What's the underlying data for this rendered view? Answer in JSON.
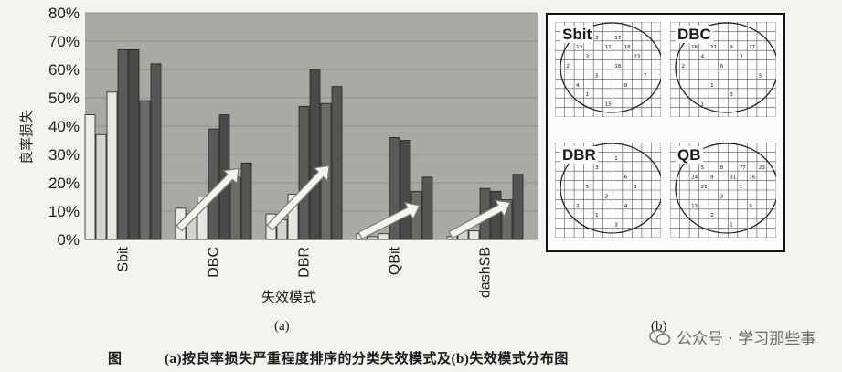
{
  "chart_data": {
    "type": "bar",
    "ylabel": "良率损失",
    "xlabel": "失效模式",
    "sublabel": "(a)",
    "ylim": [
      0,
      80
    ],
    "yticks": [
      "0%",
      "10%",
      "20%",
      "30%",
      "40%",
      "50%",
      "60%",
      "70%",
      "80%"
    ],
    "categories": [
      "Sbit",
      "DBC",
      "DBR",
      "QBit",
      "dashSB"
    ],
    "values": [
      [
        44,
        37,
        52,
        67,
        67,
        49,
        62
      ],
      [
        11,
        9,
        15,
        39,
        44,
        22,
        27
      ],
      [
        9,
        7,
        16,
        47,
        60,
        48,
        54
      ],
      [
        2,
        1,
        2,
        36,
        35,
        17,
        22
      ],
      [
        1,
        4,
        3,
        18,
        17,
        14,
        23
      ]
    ],
    "bar_colors": [
      "#eaeae6",
      "#d4d4cf",
      "#e6e6e2",
      "#5a5a58",
      "#4a4a48",
      "#6a6a67",
      "#555553"
    ],
    "trend_arrows": [
      "DBC",
      "DBR",
      "QBit",
      "dashSB"
    ],
    "grid": true,
    "colors": {
      "plot_bg": "#a9a9a6",
      "grid": "#8f8f8c",
      "arrow_fill": "#f4f4f1",
      "arrow_stroke": "#7a7a77"
    }
  },
  "panel_b": {
    "sublabel": "(b)",
    "maps": [
      {
        "title": "Sbit",
        "marks": [
          [
            4,
            1,
            "3"
          ],
          [
            6,
            1,
            "17"
          ],
          [
            2,
            2,
            "13"
          ],
          [
            5,
            2,
            "11"
          ],
          [
            7,
            2,
            "16"
          ],
          [
            3,
            3,
            "3"
          ],
          [
            8,
            3,
            "23"
          ],
          [
            1,
            4,
            "2"
          ],
          [
            6,
            4,
            "18"
          ],
          [
            4,
            5,
            "5"
          ],
          [
            9,
            5,
            "7"
          ],
          [
            2,
            6,
            "4"
          ],
          [
            7,
            6,
            "8"
          ],
          [
            5,
            8,
            "15"
          ],
          [
            3,
            7,
            "1"
          ]
        ]
      },
      {
        "title": "DBC",
        "marks": [
          [
            2,
            2,
            "16"
          ],
          [
            4,
            2,
            "21"
          ],
          [
            6,
            2,
            "9"
          ],
          [
            8,
            2,
            "21"
          ],
          [
            3,
            3,
            "4"
          ],
          [
            7,
            3,
            "3"
          ],
          [
            1,
            4,
            "2"
          ],
          [
            5,
            4,
            "6"
          ],
          [
            9,
            5,
            "5"
          ],
          [
            4,
            6,
            "1"
          ],
          [
            6,
            7,
            "3"
          ],
          [
            3,
            8,
            "1"
          ]
        ]
      },
      {
        "title": "DBR",
        "marks": [
          [
            6,
            1,
            "1"
          ],
          [
            4,
            2,
            "3"
          ],
          [
            7,
            3,
            "6"
          ],
          [
            3,
            4,
            "5"
          ],
          [
            8,
            4,
            "1"
          ],
          [
            5,
            5,
            "3"
          ],
          [
            2,
            6,
            "2"
          ],
          [
            7,
            6,
            "4"
          ],
          [
            4,
            7,
            "1"
          ],
          [
            6,
            8,
            "3"
          ]
        ]
      },
      {
        "title": "QB",
        "marks": [
          [
            3,
            2,
            "5"
          ],
          [
            5,
            2,
            "8"
          ],
          [
            7,
            2,
            "77"
          ],
          [
            9,
            2,
            "23"
          ],
          [
            2,
            3,
            "24"
          ],
          [
            4,
            3,
            "9"
          ],
          [
            6,
            3,
            "31"
          ],
          [
            8,
            3,
            "16"
          ],
          [
            3,
            4,
            "21"
          ],
          [
            7,
            4,
            "1"
          ],
          [
            5,
            5,
            "3"
          ],
          [
            2,
            6,
            "13"
          ],
          [
            8,
            6,
            "9"
          ],
          [
            4,
            7,
            "2"
          ],
          [
            6,
            8,
            "1"
          ]
        ]
      }
    ]
  },
  "caption": "图　　　(a)按良率损失严重程度排序的分类失效模式及(b)失效模式分布图",
  "watermark": "公众号 · 学习那些事"
}
